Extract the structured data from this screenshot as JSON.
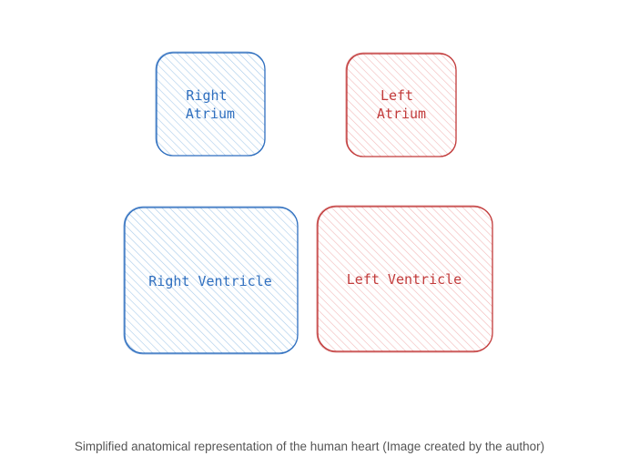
{
  "diagram": {
    "chambers": {
      "right_atrium": {
        "line1": "Right",
        "line2": "Atrium"
      },
      "left_atrium": {
        "line1": "Left",
        "line2": "Atrium"
      },
      "right_ventricle": {
        "label": "Right Ventricle"
      },
      "left_ventricle": {
        "label": "Left Ventricle"
      }
    },
    "colors": {
      "right_side_stroke": "#2f6fbf",
      "right_side_text": "#2f6fbf",
      "right_side_hatch": "#a8cbea",
      "left_side_stroke": "#c23b3b",
      "left_side_text": "#c23b3b",
      "left_side_hatch": "#f2b8b8"
    },
    "caption": "Simplified anatomical representation of the human heart (Image created by the author)"
  }
}
